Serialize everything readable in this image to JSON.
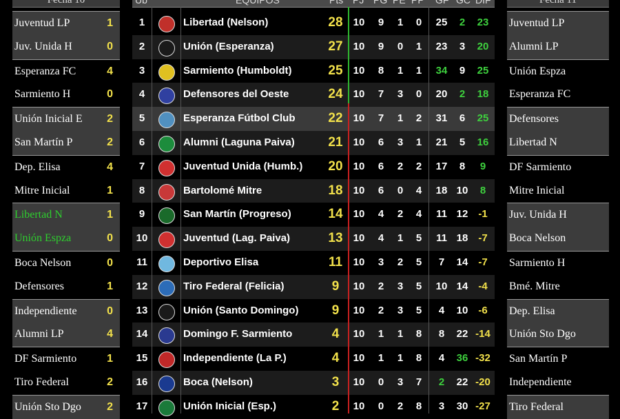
{
  "left": {
    "header": "Fecha 10",
    "rows": [
      {
        "team": "Juventud LP",
        "goals": "1"
      },
      {
        "team": "Juv. Unida H",
        "goals": "0"
      },
      {
        "team": "Esperanza FC",
        "goals": "4"
      },
      {
        "team": "Sarmiento H",
        "goals": "0"
      },
      {
        "team": "Unión Inicial E",
        "goals": "2"
      },
      {
        "team": "San Martín P",
        "goals": "2"
      },
      {
        "team": "Dep. Elisa",
        "goals": "4"
      },
      {
        "team": "Mitre Inicial",
        "goals": "1"
      },
      {
        "team": "Libertad N",
        "goals": "1",
        "highlight": "green"
      },
      {
        "team": "Unión Espza",
        "goals": "0",
        "highlight": "green"
      },
      {
        "team": "Boca Nelson",
        "goals": "0"
      },
      {
        "team": "Defensores",
        "goals": "1"
      },
      {
        "team": "Independiente",
        "goals": "0"
      },
      {
        "team": "Alumni LP",
        "goals": "4"
      },
      {
        "team": "DF Sarmiento",
        "goals": "1"
      },
      {
        "team": "Tiro Federal",
        "goals": "2"
      },
      {
        "team": "Unión Sto Dgo",
        "goals": "2"
      }
    ]
  },
  "right": {
    "header": "Fecha 11",
    "rows": [
      "Juventud LP",
      "Alumni LP",
      "Unión Espza",
      "Esperanza FC",
      "Defensores",
      "Libertad N",
      "DF Sarmiento",
      "Mitre Inicial",
      "Juv. Unida H",
      "Boca Nelson",
      "Sarmiento H",
      "Bmé. Mitre",
      "Dep. Elisa",
      "Unión Sto Dgo",
      "San Martín P",
      "Independiente",
      "Tiro Federal"
    ]
  },
  "table": {
    "headers": {
      "pos": "Ub",
      "team": "EQUIPOS",
      "pts": "Pts",
      "pj": "PJ",
      "pg": "PG",
      "pe": "PE",
      "pp": "PP",
      "gf": "GF",
      "gc": "GC",
      "dif": "DIF"
    },
    "rows": [
      {
        "pos": "1",
        "team": "Libertad (Nelson)",
        "pts": "28",
        "pj": "10",
        "pg": "9",
        "pe": "1",
        "pp": "0",
        "gf": "25",
        "gc": "2",
        "dif": "23",
        "logo": "#c0302a",
        "gcGreen": true
      },
      {
        "pos": "2",
        "team": "Unión (Esperanza)",
        "pts": "27",
        "pj": "10",
        "pg": "9",
        "pe": "0",
        "pp": "1",
        "gf": "23",
        "gc": "3",
        "dif": "20",
        "logo": "#1a1a1a"
      },
      {
        "pos": "3",
        "team": "Sarmiento (Humboldt)",
        "pts": "25",
        "pj": "10",
        "pg": "8",
        "pe": "1",
        "pp": "1",
        "gf": "34",
        "gc": "9",
        "dif": "25",
        "logo": "#e0c020",
        "gfGreen": true
      },
      {
        "pos": "4",
        "team": "Defensores del Oeste",
        "pts": "24",
        "pj": "10",
        "pg": "7",
        "pe": "3",
        "pp": "0",
        "gf": "20",
        "gc": "2",
        "dif": "18",
        "logo": "#3040a0",
        "gcGreen": true
      },
      {
        "pos": "5",
        "team": "Esperanza Fútbol Club",
        "pts": "22",
        "pj": "10",
        "pg": "7",
        "pe": "1",
        "pp": "2",
        "gf": "31",
        "gc": "6",
        "dif": "25",
        "logo": "#5090c0"
      },
      {
        "pos": "6",
        "team": "Alumni (Laguna Paiva)",
        "pts": "21",
        "pj": "10",
        "pg": "6",
        "pe": "3",
        "pp": "1",
        "gf": "21",
        "gc": "5",
        "dif": "16",
        "logo": "#1c8c3c"
      },
      {
        "pos": "7",
        "team": "Juventud Unida (Humb.)",
        "pts": "20",
        "pj": "10",
        "pg": "6",
        "pe": "2",
        "pp": "2",
        "gf": "17",
        "gc": "8",
        "dif": "9",
        "logo": "#d03030"
      },
      {
        "pos": "8",
        "team": "Bartolomé Mitre",
        "pts": "18",
        "pj": "10",
        "pg": "6",
        "pe": "0",
        "pp": "4",
        "gf": "18",
        "gc": "10",
        "dif": "8",
        "logo": "#c83838"
      },
      {
        "pos": "9",
        "team": "San Martín (Progreso)",
        "pts": "14",
        "pj": "10",
        "pg": "4",
        "pe": "2",
        "pp": "4",
        "gf": "11",
        "gc": "12",
        "dif": "-1",
        "logo": "#1a6a2a"
      },
      {
        "pos": "10",
        "team": "Juventud (Lag. Paiva)",
        "pts": "13",
        "pj": "10",
        "pg": "4",
        "pe": "1",
        "pp": "5",
        "gf": "11",
        "gc": "18",
        "dif": "-7",
        "logo": "#d03030"
      },
      {
        "pos": "11",
        "team": "Deportivo Elisa",
        "pts": "11",
        "pj": "10",
        "pg": "3",
        "pe": "2",
        "pp": "5",
        "gf": "7",
        "gc": "14",
        "dif": "-7",
        "logo": "#70b8e0"
      },
      {
        "pos": "12",
        "team": "Tiro Federal (Felicia)",
        "pts": "9",
        "pj": "10",
        "pg": "2",
        "pe": "3",
        "pp": "5",
        "gf": "10",
        "gc": "14",
        "dif": "-4",
        "logo": "#2c6cb8"
      },
      {
        "pos": "13",
        "team": "Unión (Santo Domingo)",
        "pts": "9",
        "pj": "10",
        "pg": "2",
        "pe": "3",
        "pp": "5",
        "gf": "4",
        "gc": "10",
        "dif": "-6",
        "logo": "#1a1a1a"
      },
      {
        "pos": "14",
        "team": "Domingo F. Sarmiento",
        "pts": "4",
        "pj": "10",
        "pg": "1",
        "pe": "1",
        "pp": "8",
        "gf": "8",
        "gc": "22",
        "dif": "-14",
        "logo": "#2a3a90"
      },
      {
        "pos": "15",
        "team": "Independiente (La P.)",
        "pts": "4",
        "pj": "10",
        "pg": "1",
        "pe": "1",
        "pp": "8",
        "gf": "4",
        "gc": "36",
        "dif": "-32",
        "logo": "#c02828",
        "gcGreen": true
      },
      {
        "pos": "16",
        "team": "Boca (Nelson)",
        "pts": "3",
        "pj": "10",
        "pg": "0",
        "pe": "3",
        "pp": "7",
        "gf": "2",
        "gc": "22",
        "dif": "-20",
        "logo": "#1a3a90",
        "gfGreen": true
      },
      {
        "pos": "17",
        "team": "Unión Inicial (Esp.)",
        "pts": "2",
        "pj": "10",
        "pg": "0",
        "pe": "2",
        "pp": "8",
        "gf": "3",
        "gc": "30",
        "dif": "-27",
        "logo": "#1a7a3a"
      }
    ]
  }
}
